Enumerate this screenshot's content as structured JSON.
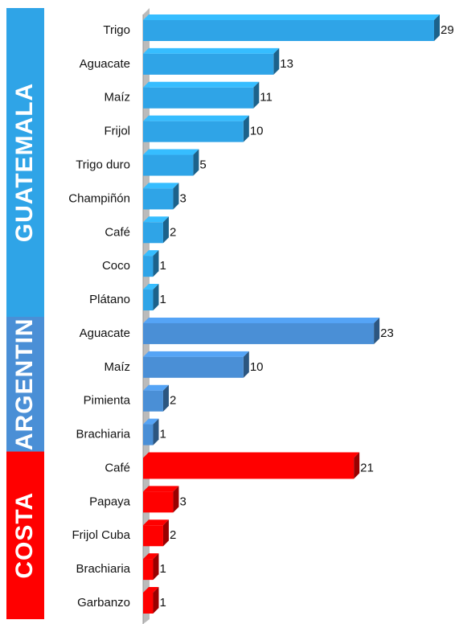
{
  "chart_data": {
    "type": "bar",
    "groups": [
      {
        "name": "GUATEMALA",
        "color": "#2fa4e7",
        "categories": [
          "Trigo",
          "Aguacate",
          "Maíz",
          "Frijol",
          "Trigo duro",
          "Champiñón",
          "Café",
          "Coco",
          "Plátano"
        ],
        "values": [
          29,
          13,
          11,
          10,
          5,
          3,
          2,
          1,
          1
        ]
      },
      {
        "name": "ARGENTIN",
        "color": "#4a8fd6",
        "categories": [
          "Aguacate",
          "Maíz",
          "Pimienta",
          "Brachiaria"
        ],
        "values": [
          23,
          10,
          2,
          1
        ]
      },
      {
        "name": "COSTA",
        "color": "#ff0000",
        "categories": [
          "Café",
          "Papaya",
          "Frijol Cuba",
          "Brachiaria",
          "Garbanzo"
        ],
        "values": [
          21,
          3,
          2,
          1,
          1
        ]
      }
    ]
  }
}
